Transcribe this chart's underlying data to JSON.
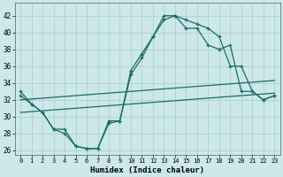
{
  "title": "",
  "xlabel": "Humidex (Indice chaleur)",
  "ylabel": "",
  "bg_color": "#cce8e8",
  "line_color": "#1a6b6b",
  "grid_color": "#aacccc",
  "x_ticks": [
    0,
    1,
    2,
    3,
    4,
    5,
    6,
    7,
    8,
    9,
    10,
    11,
    12,
    13,
    14,
    15,
    16,
    17,
    18,
    19,
    20,
    21,
    22,
    23
  ],
  "y_ticks": [
    26,
    28,
    30,
    32,
    34,
    36,
    38,
    40,
    42
  ],
  "xlim": [
    -0.5,
    23.5
  ],
  "ylim": [
    25.5,
    43.5
  ],
  "line1_y": [
    33,
    31.5,
    30.5,
    28.5,
    28,
    26.5,
    26.2,
    26.2,
    29.2,
    29.5,
    35,
    37,
    39.5,
    41.5,
    42,
    41.5,
    41,
    40.5,
    39.5,
    36,
    36,
    33,
    32,
    32.5
  ],
  "line2_y": [
    32.5,
    31.5,
    30.5,
    28.5,
    28.5,
    26.5,
    26.2,
    26.2,
    29.5,
    29.5,
    35.5,
    37.5,
    39.5,
    42,
    42,
    40.5,
    40.5,
    38.5,
    38.0,
    38.5,
    33,
    33,
    32,
    32.5
  ],
  "line3_y": [
    32.0,
    32.1,
    32.2,
    32.3,
    32.4,
    32.5,
    32.6,
    32.7,
    32.8,
    32.9,
    33.0,
    33.1,
    33.2,
    33.3,
    33.4,
    33.5,
    33.6,
    33.7,
    33.8,
    33.9,
    34.0,
    34.1,
    34.2,
    34.3
  ],
  "line4_y": [
    30.5,
    30.6,
    30.7,
    30.8,
    30.9,
    31.0,
    31.1,
    31.2,
    31.3,
    31.4,
    31.5,
    31.6,
    31.7,
    31.8,
    31.9,
    32.0,
    32.1,
    32.2,
    32.3,
    32.4,
    32.5,
    32.6,
    32.7,
    32.8
  ]
}
